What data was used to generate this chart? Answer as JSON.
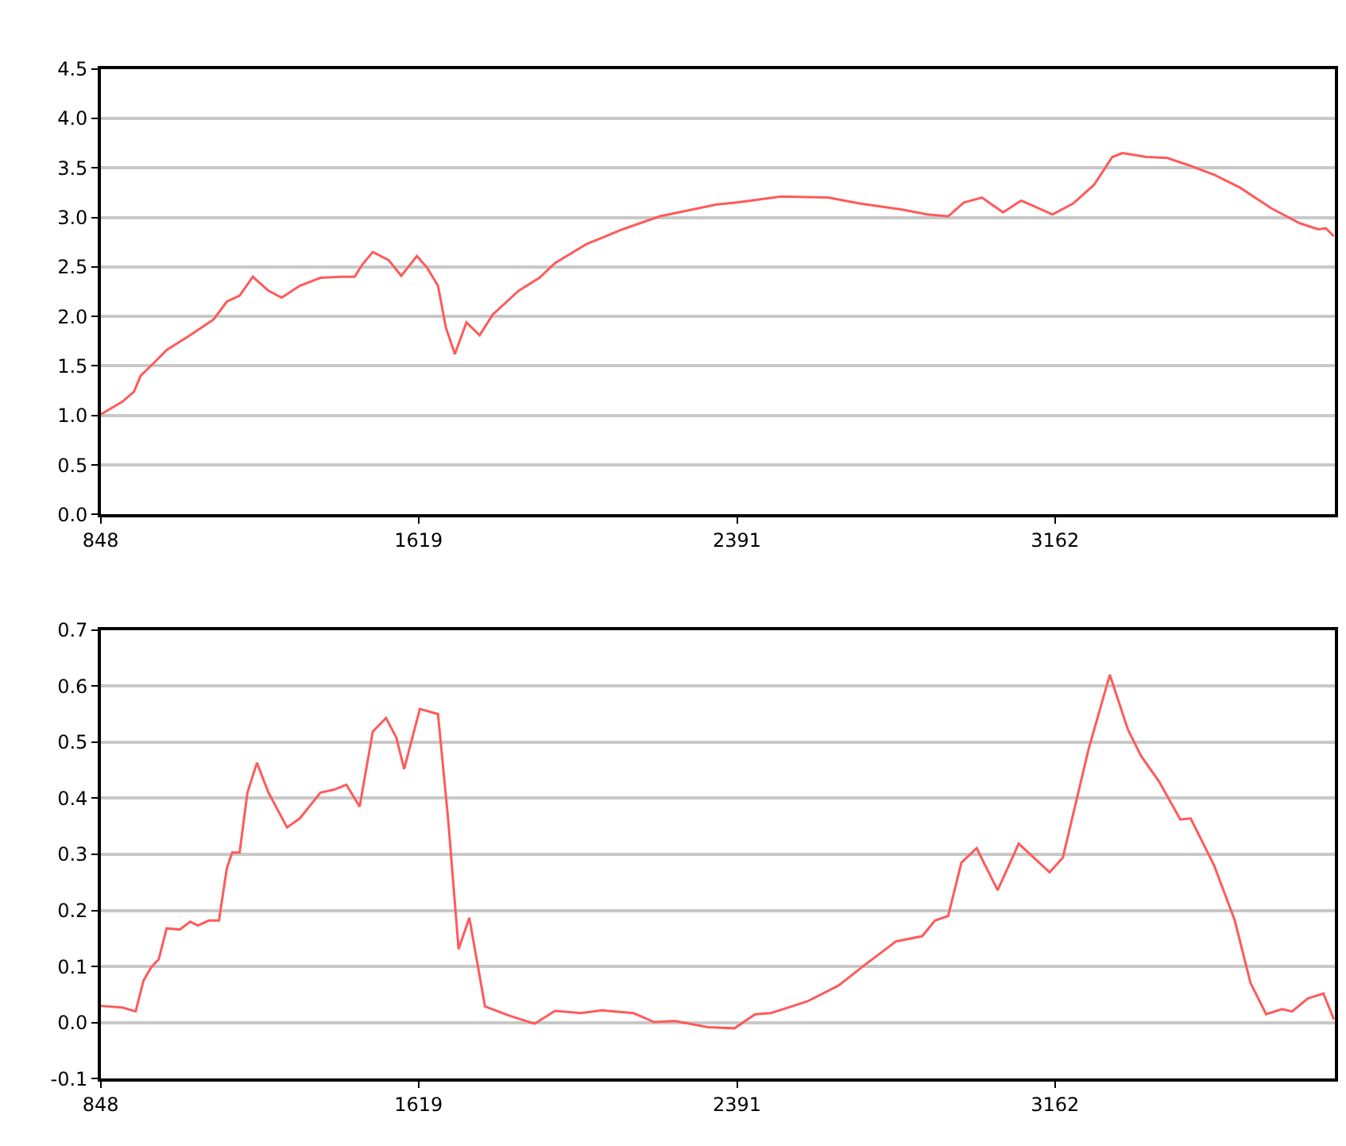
{
  "chart_data": [
    {
      "type": "line",
      "xlim": [
        848,
        3841
      ],
      "xticks": [
        848,
        1619,
        2391,
        3162
      ],
      "ylim": [
        0,
        4.5
      ],
      "yticks": [
        {
          "value": 0,
          "label": "0.0"
        },
        {
          "value": 0.5,
          "label": "0.5"
        },
        {
          "value": 1,
          "label": "1.0"
        },
        {
          "value": 1.5,
          "label": "1.5"
        },
        {
          "value": 2,
          "label": "2.0"
        },
        {
          "value": 2.5,
          "label": "2.5"
        },
        {
          "value": 3,
          "label": "3.0"
        },
        {
          "value": 3.5,
          "label": "3.5"
        },
        {
          "value": 4,
          "label": "4.0"
        },
        {
          "value": 4.5,
          "label": "4.5"
        }
      ],
      "grid": "y",
      "x": [
        848,
        901,
        929,
        945,
        977,
        1008,
        1065,
        1122,
        1154,
        1185,
        1217,
        1255,
        1287,
        1331,
        1381,
        1432,
        1464,
        1482,
        1508,
        1546,
        1577,
        1615,
        1640,
        1666,
        1685,
        1707,
        1735,
        1767,
        1799,
        1862,
        1912,
        1950,
        2026,
        2114,
        2203,
        2342,
        2391,
        2498,
        2612,
        2688,
        2789,
        2852,
        2903,
        2941,
        2985,
        3036,
        3080,
        3156,
        3206,
        3257,
        3301,
        3326,
        3383,
        3434,
        3484,
        3548,
        3611,
        3687,
        3756,
        3800,
        3819,
        3838
      ],
      "series": [
        {
          "color": "#ff5a5a",
          "values": [
            1.01,
            1.14,
            1.24,
            1.4,
            1.53,
            1.66,
            1.81,
            1.97,
            2.15,
            2.21,
            2.4,
            2.26,
            2.19,
            2.31,
            2.39,
            2.4,
            2.4,
            2.52,
            2.65,
            2.57,
            2.41,
            2.61,
            2.49,
            2.31,
            1.89,
            1.62,
            1.94,
            1.81,
            2.02,
            2.26,
            2.39,
            2.54,
            2.73,
            2.88,
            3.01,
            3.13,
            3.15,
            3.21,
            3.2,
            3.14,
            3.08,
            3.03,
            3.01,
            3.15,
            3.2,
            3.05,
            3.17,
            3.03,
            3.14,
            3.33,
            3.61,
            3.65,
            3.61,
            3.6,
            3.53,
            3.43,
            3.3,
            3.09,
            2.94,
            2.88,
            2.89,
            2.81
          ]
        }
      ]
    },
    {
      "type": "line",
      "xlim": [
        848,
        3841
      ],
      "xticks": [
        848,
        1619,
        2391,
        3162
      ],
      "ylim": [
        -0.1,
        0.7
      ],
      "yticks": [
        -0.1,
        {
          "value": 0,
          "label": "0.0"
        },
        0.1,
        0.2,
        0.3,
        0.4,
        0.5,
        0.6,
        0.7
      ],
      "grid": "y",
      "x": [
        848,
        901,
        933,
        952,
        971,
        989,
        1008,
        1040,
        1065,
        1084,
        1110,
        1135,
        1154,
        1167,
        1185,
        1204,
        1227,
        1255,
        1300,
        1331,
        1381,
        1413,
        1444,
        1476,
        1508,
        1540,
        1565,
        1584,
        1622,
        1666,
        1691,
        1716,
        1742,
        1780,
        1837,
        1900,
        1950,
        2013,
        2064,
        2140,
        2190,
        2241,
        2321,
        2385,
        2435,
        2473,
        2562,
        2637,
        2701,
        2777,
        2840,
        2871,
        2903,
        2935,
        2972,
        3023,
        3074,
        3149,
        3181,
        3244,
        3295,
        3339,
        3371,
        3415,
        3466,
        3491,
        3548,
        3598,
        3636,
        3674,
        3712,
        3737,
        3775,
        3813,
        3838
      ],
      "series": [
        {
          "color": "#ff5a5a",
          "values": [
            0.03,
            0.027,
            0.02,
            0.075,
            0.099,
            0.113,
            0.168,
            0.166,
            0.18,
            0.173,
            0.182,
            0.182,
            0.275,
            0.303,
            0.303,
            0.41,
            0.463,
            0.41,
            0.348,
            0.364,
            0.41,
            0.415,
            0.424,
            0.385,
            0.519,
            0.543,
            0.508,
            0.452,
            0.559,
            0.55,
            0.359,
            0.131,
            0.187,
            0.029,
            0.013,
            -0.002,
            0.021,
            0.017,
            0.022,
            0.017,
            0.001,
            0.003,
            -0.008,
            -0.01,
            0.015,
            0.017,
            0.038,
            0.066,
            0.103,
            0.145,
            0.154,
            0.182,
            0.19,
            0.285,
            0.311,
            0.236,
            0.319,
            0.268,
            0.294,
            0.489,
            0.62,
            0.522,
            0.475,
            0.429,
            0.362,
            0.364,
            0.28,
            0.182,
            0.071,
            0.015,
            0.024,
            0.02,
            0.043,
            0.052,
            0.006
          ]
        }
      ]
    }
  ]
}
